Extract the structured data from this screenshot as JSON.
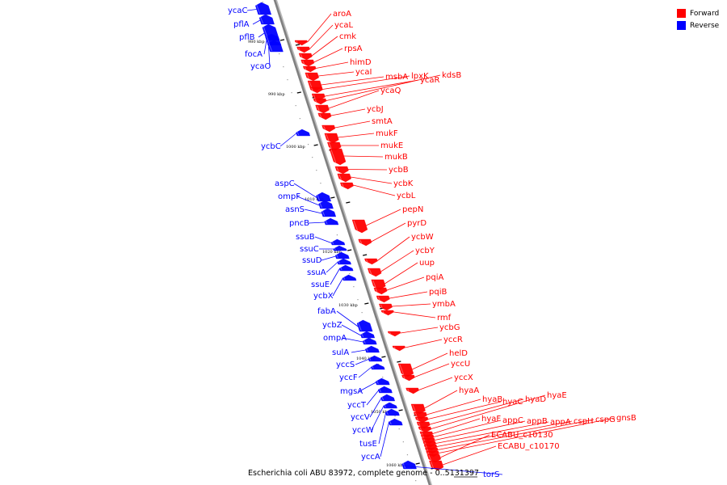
{
  "legend": {
    "forward": {
      "label": "Forward",
      "color": "#ff0000"
    },
    "reverse": {
      "label": "Reverse",
      "color": "#0000ff"
    }
  },
  "caption": {
    "text": "Escherichia coli ABU 83972, complete genome - 0..5131397"
  },
  "ticks": [
    "980 kbp",
    "990 kbp",
    "1000 kbp",
    "1010 kbp",
    "1020 kbp",
    "1030 kbp",
    "1040 kbp",
    "1050 kbp",
    "1060 kbp"
  ],
  "genes": [
    {
      "name": "ycaC",
      "strand": "reverse"
    },
    {
      "name": "pflA",
      "strand": "reverse"
    },
    {
      "name": "pflB",
      "strand": "reverse"
    },
    {
      "name": "focA",
      "strand": "reverse"
    },
    {
      "name": "ycaO",
      "strand": "reverse"
    },
    {
      "name": "aroA",
      "strand": "forward"
    },
    {
      "name": "ycaL",
      "strand": "forward"
    },
    {
      "name": "cmk",
      "strand": "forward"
    },
    {
      "name": "rpsA",
      "strand": "forward"
    },
    {
      "name": "himD",
      "strand": "forward"
    },
    {
      "name": "ycaI",
      "strand": "forward"
    },
    {
      "name": "msbA",
      "strand": "forward"
    },
    {
      "name": "lpxK",
      "strand": "forward"
    },
    {
      "name": "ycaR",
      "strand": "forward"
    },
    {
      "name": "kdsB",
      "strand": "forward"
    },
    {
      "name": "ycaQ",
      "strand": "forward"
    },
    {
      "name": "ycbJ",
      "strand": "forward"
    },
    {
      "name": "smtA",
      "strand": "forward"
    },
    {
      "name": "mukF",
      "strand": "forward"
    },
    {
      "name": "mukE",
      "strand": "forward"
    },
    {
      "name": "mukB",
      "strand": "forward"
    },
    {
      "name": "ycbB",
      "strand": "forward"
    },
    {
      "name": "ycbK",
      "strand": "forward"
    },
    {
      "name": "ycbL",
      "strand": "forward"
    },
    {
      "name": "ycbC",
      "strand": "reverse"
    },
    {
      "name": "aspC",
      "strand": "reverse"
    },
    {
      "name": "ompF",
      "strand": "reverse"
    },
    {
      "name": "asnS",
      "strand": "reverse"
    },
    {
      "name": "pncB",
      "strand": "reverse"
    },
    {
      "name": "pepN",
      "strand": "forward"
    },
    {
      "name": "pyrD",
      "strand": "forward"
    },
    {
      "name": "ycbW",
      "strand": "forward"
    },
    {
      "name": "ycbY",
      "strand": "forward"
    },
    {
      "name": "uup",
      "strand": "forward"
    },
    {
      "name": "ssuB",
      "strand": "reverse"
    },
    {
      "name": "ssuC",
      "strand": "reverse"
    },
    {
      "name": "ssuD",
      "strand": "reverse"
    },
    {
      "name": "ssuA",
      "strand": "reverse"
    },
    {
      "name": "ssuE",
      "strand": "reverse"
    },
    {
      "name": "ycbX",
      "strand": "reverse"
    },
    {
      "name": "pqiA",
      "strand": "forward"
    },
    {
      "name": "pqiB",
      "strand": "forward"
    },
    {
      "name": "ymbA",
      "strand": "forward"
    },
    {
      "name": "rmf",
      "strand": "forward"
    },
    {
      "name": "ycbG",
      "strand": "forward"
    },
    {
      "name": "fabA",
      "strand": "reverse"
    },
    {
      "name": "ycbZ",
      "strand": "reverse"
    },
    {
      "name": "ompA",
      "strand": "reverse"
    },
    {
      "name": "sulA",
      "strand": "reverse"
    },
    {
      "name": "yccS",
      "strand": "reverse"
    },
    {
      "name": "yccF",
      "strand": "reverse"
    },
    {
      "name": "mgsA",
      "strand": "reverse"
    },
    {
      "name": "yccT",
      "strand": "reverse"
    },
    {
      "name": "yccV",
      "strand": "reverse"
    },
    {
      "name": "yccW",
      "strand": "reverse"
    },
    {
      "name": "tusE",
      "strand": "reverse"
    },
    {
      "name": "yccA",
      "strand": "reverse"
    },
    {
      "name": "torS",
      "strand": "reverse"
    },
    {
      "name": "yccR",
      "strand": "forward"
    },
    {
      "name": "helD",
      "strand": "forward"
    },
    {
      "name": "yccU",
      "strand": "forward"
    },
    {
      "name": "yccX",
      "strand": "forward"
    },
    {
      "name": "hyaA",
      "strand": "forward"
    },
    {
      "name": "hyaB",
      "strand": "forward"
    },
    {
      "name": "hyaC",
      "strand": "forward"
    },
    {
      "name": "hyaD",
      "strand": "forward"
    },
    {
      "name": "hyaE",
      "strand": "forward"
    },
    {
      "name": "hyaF",
      "strand": "forward"
    },
    {
      "name": "appC",
      "strand": "forward"
    },
    {
      "name": "appB",
      "strand": "forward"
    },
    {
      "name": "appA",
      "strand": "forward"
    },
    {
      "name": "cspH",
      "strand": "forward"
    },
    {
      "name": "cspG",
      "strand": "forward"
    },
    {
      "name": "gnsB",
      "strand": "forward"
    },
    {
      "name": "ECABU_c10130",
      "strand": "forward"
    },
    {
      "name": "ECABU_c10170",
      "strand": "forward"
    }
  ]
}
